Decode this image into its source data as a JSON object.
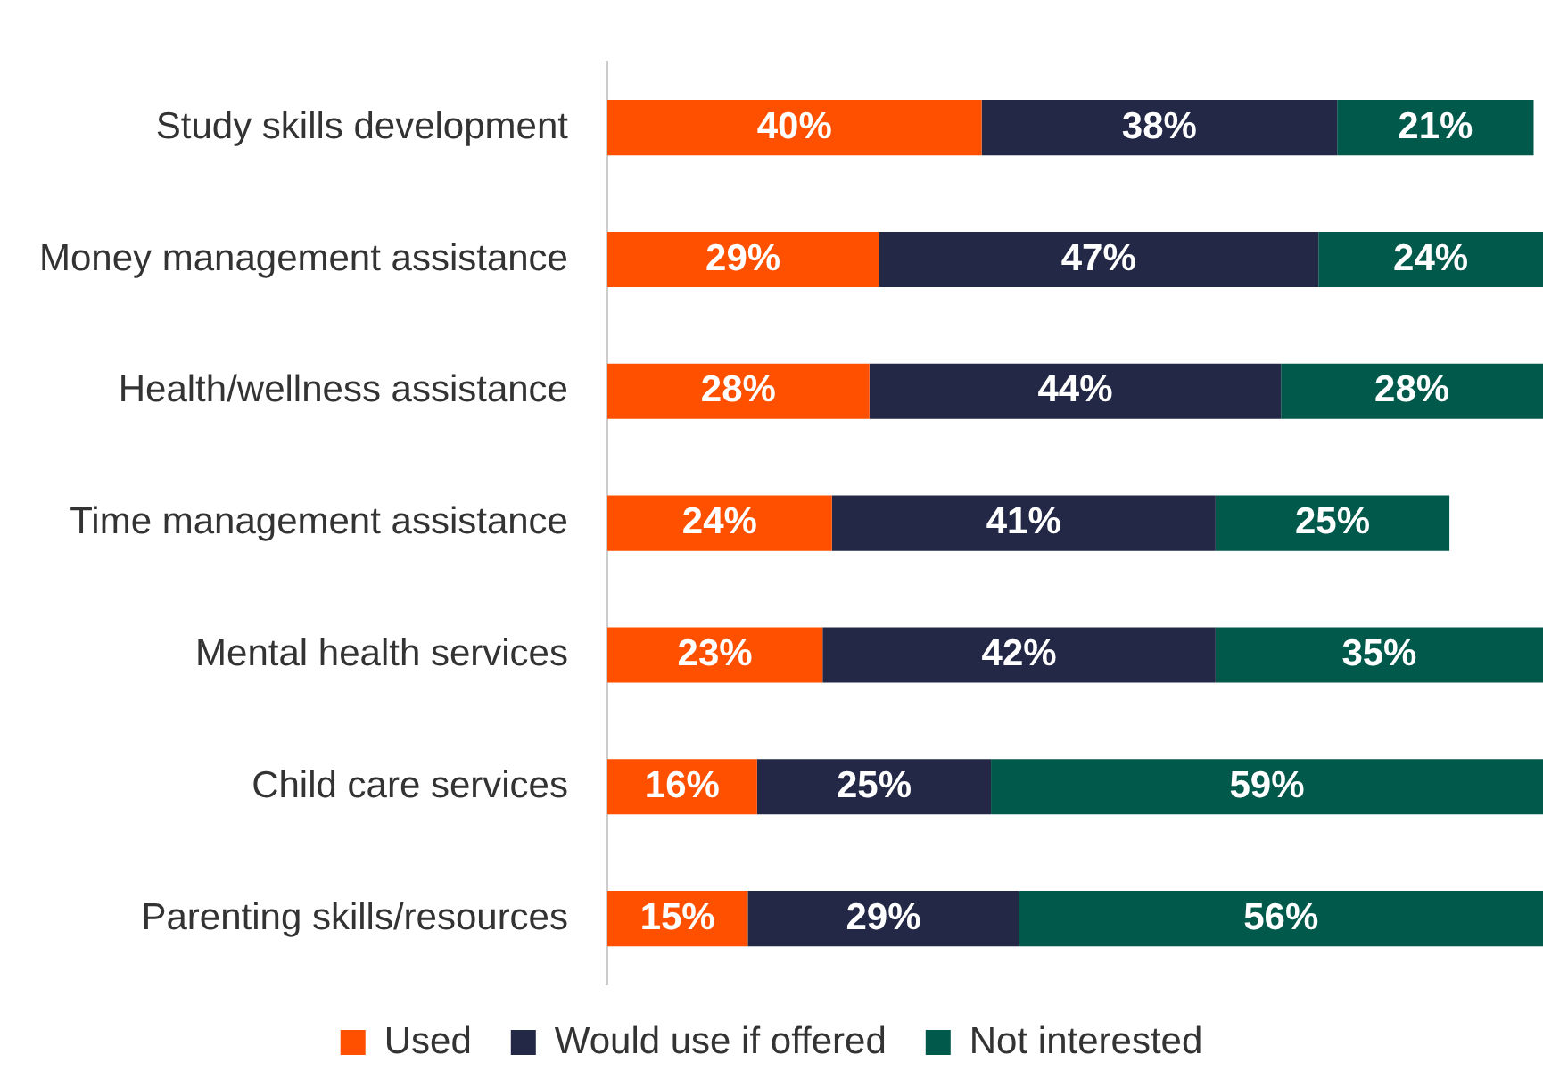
{
  "chart_data": {
    "type": "bar",
    "orientation": "horizontal",
    "stacked": true,
    "legend": "bottom",
    "grid": false,
    "tick_labels": "y",
    "categories": [
      "Study skills development",
      "Money management assistance",
      "Health/wellness assistance",
      "Time management assistance",
      "Mental health services",
      "Child care services",
      "Parenting skills/resources"
    ],
    "series": [
      {
        "name": "Used",
        "color": "#ff5000",
        "values": [
          40,
          29,
          28,
          24,
          23,
          16,
          15
        ],
        "value_labels": [
          "40%",
          "29%",
          "28%",
          "24%",
          "23%",
          "16%",
          "15%"
        ]
      },
      {
        "name": "Would use if offered",
        "color": "#222845",
        "values": [
          38,
          47,
          44,
          41,
          42,
          25,
          29
        ],
        "value_labels": [
          "38%",
          "47%",
          "44%",
          "41%",
          "42%",
          "25%",
          "29%"
        ]
      },
      {
        "name": "Not interested",
        "color": "#00594a",
        "values": [
          21,
          24,
          28,
          25,
          35,
          59,
          56
        ],
        "value_labels": [
          "21%",
          "24%",
          "28%",
          "25%",
          "35%",
          "59%",
          "56%"
        ]
      }
    ]
  }
}
